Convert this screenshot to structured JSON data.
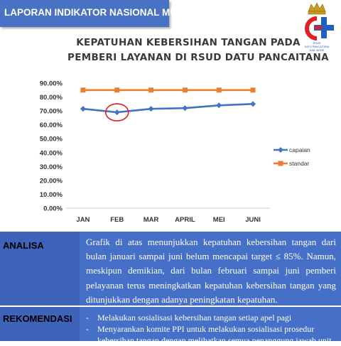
{
  "header": {
    "title": "LAPORAN INDIKATOR NASIONAL MUTU"
  },
  "logo": {
    "small_text": [
      "RSUD",
      "DATU PANCAITANA",
      "KAB. BONE"
    ],
    "colors": {
      "red": "#e02020",
      "blue": "#2060c0",
      "gold": "#c89a20"
    }
  },
  "chart_data": {
    "type": "line",
    "title_lines": [
      "KEPATUHAN KEBERSIHAN TANGAN PADA",
      "PEMBERI LAYANAN DI RSUD DATU PANCAITANA"
    ],
    "categories": [
      "JAN",
      "FEB",
      "MAR",
      "APRIL",
      "MEI",
      "JUNI"
    ],
    "series": [
      {
        "name": "capaian",
        "values": [
          71.5,
          69.0,
          71.5,
          72.0,
          74.0,
          75.0
        ],
        "color": "#4472c4",
        "marker": "diamond"
      },
      {
        "name": "standar",
        "values": [
          85,
          85,
          85,
          85,
          85,
          85
        ],
        "color": "#ed7d31",
        "marker": "square"
      }
    ],
    "y_ticks": [
      "0.00%",
      "10.00%",
      "20.00%",
      "30.00%",
      "40.00%",
      "50.00%",
      "60.00%",
      "70.00%",
      "80.00%",
      "90.00%"
    ],
    "ylim": [
      0,
      90
    ],
    "grid": false,
    "legend_position": "right",
    "annotation": {
      "type": "circle",
      "category": "FEB",
      "series": "capaian",
      "color": "#e02020"
    }
  },
  "analisa": {
    "label": "ANALISA",
    "text": "Grafik di atas menunjukkan kepatuhan kebersihan tangan dari bulan januari sampai juni belum mencapai target ≤ 85%. Namun, meskipun demikian, dari bulan februari sampai juni pemberi pelayanan terus meningkatkan kepatuhan kebersihan tangan yang ditunjukkan dengan adanya peningkatan kepatuhan."
  },
  "rekomendasi": {
    "label": "REKOMENDASI",
    "items": [
      "Melakukan sosialisasi kebersihan tangan setiap apel pagi",
      "Menyarankan komite PPI untuk melakukan sosialisasi prosedur kebersihan tangan dengan melibatkan semua penanggung jawab unit"
    ]
  }
}
